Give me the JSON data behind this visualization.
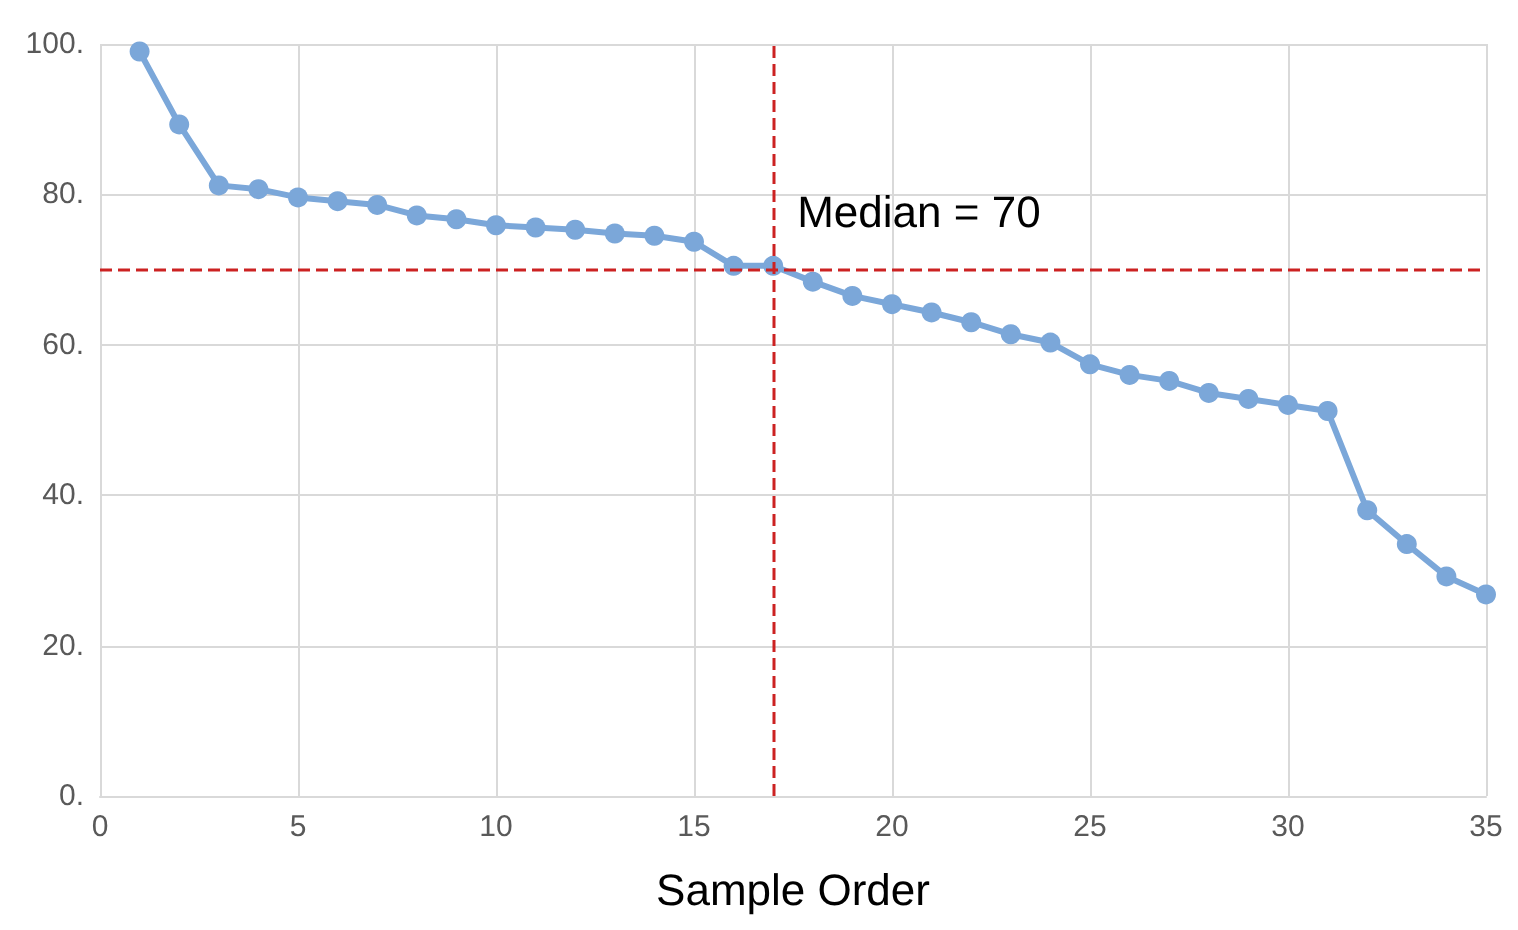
{
  "chart_data": {
    "type": "line",
    "xlabel": "Sample Order",
    "x": [
      1,
      2,
      3,
      4,
      5,
      6,
      7,
      8,
      9,
      10,
      11,
      12,
      13,
      14,
      15,
      16,
      17,
      18,
      19,
      20,
      21,
      22,
      23,
      24,
      25,
      26,
      27,
      28,
      29,
      30,
      31,
      32,
      33,
      34,
      35
    ],
    "series": [
      {
        "color": "#7ba7d9",
        "values": [
          99,
          89.3,
          81.2,
          80.7,
          79.6,
          79.1,
          78.6,
          77.2,
          76.7,
          75.9,
          75.6,
          75.3,
          74.8,
          74.5,
          73.7,
          70.5,
          70.5,
          68.4,
          66.5,
          65.4,
          64.3,
          63,
          61.4,
          60.3,
          57.4,
          56,
          55.2,
          53.6,
          52.8,
          52,
          51.2,
          38,
          33.5,
          29.2,
          26.8
        ]
      }
    ],
    "xlim": [
      0,
      35
    ],
    "xticks": [
      0,
      5,
      10,
      15,
      20,
      25,
      30,
      35
    ],
    "ylim": [
      0,
      100
    ],
    "yticks": [
      {
        "value": 0,
        "label": "0."
      },
      {
        "value": 20,
        "label": "20."
      },
      {
        "value": 40,
        "label": "40."
      },
      {
        "value": 60,
        "label": "60."
      },
      {
        "value": 80,
        "label": "80."
      },
      {
        "value": 100,
        "label": "100."
      }
    ],
    "ref_lines": [
      {
        "axis": "y",
        "value": 70,
        "color": "#cc2222",
        "line_style": "dashed"
      },
      {
        "axis": "x",
        "value": 17,
        "color": "#cc2222",
        "line_style": "dashed"
      }
    ],
    "annotations": [
      {
        "text": "Median = 70",
        "x": 17,
        "y": 70
      }
    ],
    "grid": true,
    "marker": "circle",
    "line_style": "solid"
  }
}
